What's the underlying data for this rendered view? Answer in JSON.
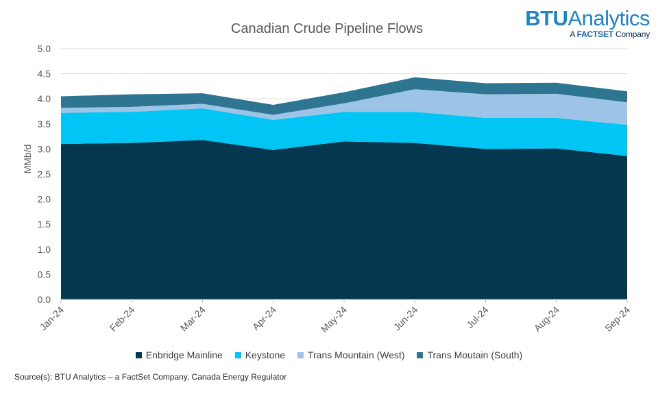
{
  "logo": {
    "brand_bold": "BTU",
    "brand_rest": "Analytics",
    "sub_prefix": "A ",
    "sub_bold": "FACTSET",
    "sub_suffix": " Company"
  },
  "source_note": "Source(s): BTU Analytics – a FactSet Company, Canada Energy Regulator",
  "chart_data": {
    "type": "area",
    "stacked": true,
    "title": "Canadian Crude Pipeline Flows",
    "ylabel": "MMb/d",
    "xlabel": "",
    "ylim": [
      0,
      5
    ],
    "yticks": [
      "0.0",
      "0.5",
      "1.0",
      "1.5",
      "2.0",
      "2.5",
      "3.0",
      "3.5",
      "4.0",
      "4.5",
      "5.0"
    ],
    "grid": true,
    "legend_position": "bottom",
    "categories": [
      "Jan-24",
      "Feb-24",
      "Mar-24",
      "Apr-24",
      "May-24",
      "Jun-24",
      "Jul-24",
      "Aug-24",
      "Sep-24"
    ],
    "series": [
      {
        "name": "Enbridge Mainline",
        "color": "#05384f",
        "values": [
          3.1,
          3.12,
          3.18,
          2.98,
          3.15,
          3.12,
          3.0,
          3.01,
          2.86
        ]
      },
      {
        "name": "Keystone",
        "color": "#00c5f5",
        "values": [
          0.62,
          0.62,
          0.63,
          0.6,
          0.59,
          0.62,
          0.62,
          0.61,
          0.62
        ]
      },
      {
        "name": "Trans Mountain (West)",
        "color": "#9dc3e6",
        "values": [
          0.1,
          0.1,
          0.09,
          0.1,
          0.17,
          0.45,
          0.47,
          0.48,
          0.45
        ]
      },
      {
        "name": "Trans Moutain (South)",
        "color": "#2e7591",
        "values": [
          0.23,
          0.25,
          0.21,
          0.2,
          0.22,
          0.24,
          0.22,
          0.22,
          0.22
        ]
      }
    ]
  }
}
